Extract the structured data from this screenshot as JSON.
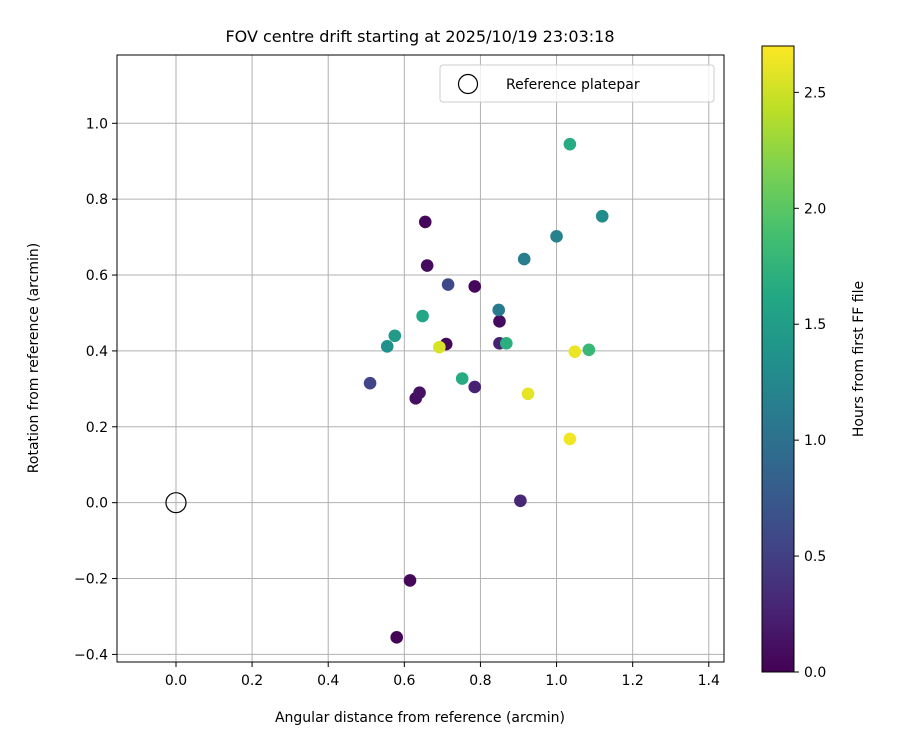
{
  "chart_data": {
    "type": "scatter",
    "title": "FOV centre drift starting at 2025/10/19 23:03:18",
    "xlabel": "Angular distance from reference (arcmin)",
    "ylabel": "Rotation from reference (arcmin)",
    "xlim": [
      -0.155,
      1.44
    ],
    "ylim": [
      -0.42,
      1.18
    ],
    "grid": true,
    "legend_position": "top-right",
    "x_ticks": [
      "0.0",
      "0.2",
      "0.4",
      "0.6",
      "0.8",
      "1.0",
      "1.2",
      "1.4"
    ],
    "x_tick_values": [
      0.0,
      0.2,
      0.4,
      0.6,
      0.8,
      1.0,
      1.2,
      1.4
    ],
    "y_ticks": [
      "−0.4",
      "−0.2",
      "0.0",
      "0.2",
      "0.4",
      "0.6",
      "0.8",
      "1.0"
    ],
    "y_tick_values": [
      -0.4,
      -0.2,
      0.0,
      0.2,
      0.4,
      0.6,
      0.8,
      1.0
    ],
    "reference": {
      "x": 0.0,
      "y": 0.0,
      "label": "Reference platepar"
    },
    "colorbar": {
      "label": "Hours from first FF file",
      "range": [
        0.0,
        2.7
      ],
      "ticks": [
        "0.0",
        "0.5",
        "1.0",
        "1.5",
        "2.0",
        "2.5"
      ],
      "tick_values": [
        0.0,
        0.5,
        1.0,
        1.5,
        2.0,
        2.5
      ]
    },
    "points": [
      {
        "x": 0.58,
        "y": -0.355,
        "hours": 0.02
      },
      {
        "x": 0.615,
        "y": -0.205,
        "hours": 0.05
      },
      {
        "x": 0.63,
        "y": 0.275,
        "hours": 0.1
      },
      {
        "x": 0.64,
        "y": 0.29,
        "hours": 0.12
      },
      {
        "x": 0.655,
        "y": 0.74,
        "hours": 0.05
      },
      {
        "x": 0.66,
        "y": 0.625,
        "hours": 0.08
      },
      {
        "x": 0.71,
        "y": 0.418,
        "hours": 0.05
      },
      {
        "x": 0.785,
        "y": 0.57,
        "hours": 0.05
      },
      {
        "x": 0.785,
        "y": 0.305,
        "hours": 0.25
      },
      {
        "x": 0.85,
        "y": 0.478,
        "hours": 0.08
      },
      {
        "x": 0.85,
        "y": 0.42,
        "hours": 0.25
      },
      {
        "x": 0.905,
        "y": 0.005,
        "hours": 0.3
      },
      {
        "x": 0.51,
        "y": 0.315,
        "hours": 0.55
      },
      {
        "x": 0.715,
        "y": 0.575,
        "hours": 0.6
      },
      {
        "x": 0.848,
        "y": 0.508,
        "hours": 1.1
      },
      {
        "x": 0.915,
        "y": 0.642,
        "hours": 1.15
      },
      {
        "x": 1.0,
        "y": 0.702,
        "hours": 1.2
      },
      {
        "x": 1.12,
        "y": 0.755,
        "hours": 1.3
      },
      {
        "x": 0.555,
        "y": 0.412,
        "hours": 1.35
      },
      {
        "x": 0.575,
        "y": 0.44,
        "hours": 1.45
      },
      {
        "x": 0.648,
        "y": 0.492,
        "hours": 1.6
      },
      {
        "x": 0.752,
        "y": 0.327,
        "hours": 1.65
      },
      {
        "x": 0.868,
        "y": 0.42,
        "hours": 1.7
      },
      {
        "x": 1.035,
        "y": 0.945,
        "hours": 1.65
      },
      {
        "x": 1.085,
        "y": 0.403,
        "hours": 1.8
      },
      {
        "x": 0.692,
        "y": 0.41,
        "hours": 2.55
      },
      {
        "x": 0.925,
        "y": 0.287,
        "hours": 2.6
      },
      {
        "x": 1.035,
        "y": 0.168,
        "hours": 2.65
      },
      {
        "x": 1.048,
        "y": 0.398,
        "hours": 2.62
      }
    ]
  }
}
